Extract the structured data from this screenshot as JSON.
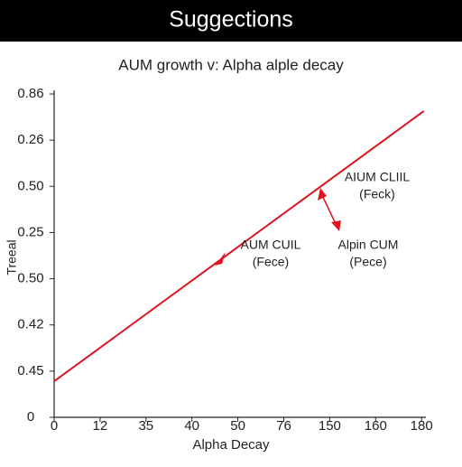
{
  "header": {
    "title": "Suggections"
  },
  "chart_data": {
    "type": "line",
    "title": "AUM growth v: Alpha alple decay",
    "xlabel": "Alpha Decay",
    "ylabel": "Treeal",
    "x": [
      0,
      8.05
    ],
    "series": [
      {
        "name": "AUM growth",
        "color": "#e0141e",
        "values": [
          0.78,
          6.63
        ]
      }
    ],
    "xlim": [
      0,
      8.05
    ],
    "ylim": [
      0,
      7
    ],
    "xticks": [
      {
        "value": 0,
        "label": "0"
      },
      {
        "value": 1,
        "label": "12"
      },
      {
        "value": 2,
        "label": "35"
      },
      {
        "value": 3,
        "label": "40"
      },
      {
        "value": 4,
        "label": "50"
      },
      {
        "value": 5,
        "label": "76"
      },
      {
        "value": 6,
        "label": "150"
      },
      {
        "value": 7,
        "label": "160"
      },
      {
        "value": 8,
        "label": "180"
      }
    ],
    "yticks": [
      {
        "value": 0,
        "label": "0"
      },
      {
        "value": 1,
        "label": "0.45"
      },
      {
        "value": 2,
        "label": "0.42"
      },
      {
        "value": 3,
        "label": "0.50"
      },
      {
        "value": 4,
        "label": "0.25"
      },
      {
        "value": 5,
        "label": "0.50"
      },
      {
        "value": 6,
        "label": "0.26"
      },
      {
        "value": 7,
        "label": "0.86"
      }
    ],
    "annotations": [
      {
        "lines": [
          "AUM CUIL",
          "(Fece)"
        ]
      },
      {
        "lines": [
          "AIUM CLIIL",
          "(Feck)"
        ]
      },
      {
        "lines": [
          "Alpin CUM",
          "(Pece)"
        ]
      }
    ]
  }
}
